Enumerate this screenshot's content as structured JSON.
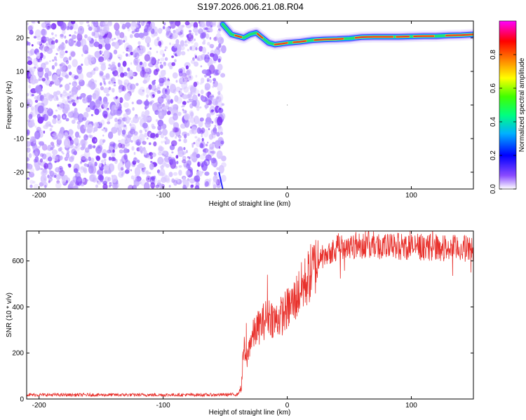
{
  "title": "S197.2026.006.21.08.R04",
  "chart_data": [
    {
      "type": "heatmap",
      "name": "spectrogram",
      "xlabel": "Height of straight line (km)",
      "ylabel": "Frequency (Hz)",
      "xlim": [
        -210,
        150
      ],
      "ylim": [
        -25,
        25
      ],
      "xticks": [
        -200,
        -100,
        0,
        100
      ],
      "xtick_labels": [
        "-200",
        "-100",
        "0",
        "100"
      ],
      "yticks": [
        20,
        10,
        0,
        -10,
        -20
      ],
      "ytick_labels": [
        "20",
        "10",
        "0",
        "-10",
        "-20"
      ],
      "noise_region": {
        "x_from": -210,
        "x_to": -50,
        "description_amplitude": 0.15
      },
      "ridge": {
        "x": [
          -52,
          -45,
          -40,
          -35,
          -30,
          -25,
          -20,
          -15,
          -10,
          -5,
          0,
          10,
          20,
          30,
          40,
          50,
          60,
          70,
          80,
          90,
          100,
          110,
          120,
          130,
          140,
          150
        ],
        "freq": [
          24,
          21,
          20.5,
          20,
          21,
          21.5,
          20,
          18.5,
          18,
          18.2,
          18.5,
          18.8,
          19.3,
          19.5,
          19.6,
          19.8,
          20.2,
          20.3,
          20.3,
          20.3,
          20.4,
          20.5,
          20.5,
          20.7,
          20.8,
          21
        ]
      },
      "colorbar": {
        "label": "Normalized spectral amplitude",
        "ticks": [
          0.0,
          0.2,
          0.4,
          0.6,
          0.8
        ],
        "tick_labels": [
          "0.0",
          "0.2",
          "0.4",
          "0.6",
          "0.8"
        ],
        "range": [
          0,
          1
        ],
        "colormap": [
          "#ffffff",
          "#6a00ff",
          "#0000ff",
          "#00ffff",
          "#00ff00",
          "#ffff00",
          "#ff8000",
          "#ff0000",
          "#ff00ff"
        ]
      }
    },
    {
      "type": "line",
      "name": "snr",
      "xlabel": "Height of straight line (km)",
      "ylabel": "SNR (10 * v/v)",
      "xlim": [
        -210,
        150
      ],
      "ylim": [
        0,
        730
      ],
      "xticks": [
        -200,
        -100,
        0,
        100
      ],
      "xtick_labels": [
        "-200",
        "-100",
        "0",
        "100"
      ],
      "yticks": [
        0,
        200,
        400,
        600
      ],
      "ytick_labels": [
        "0",
        "200",
        "400",
        "600"
      ],
      "color": "#e8312c",
      "series": [
        {
          "name": "SNR",
          "x": [
            -210,
            -180,
            -150,
            -120,
            -90,
            -60,
            -40,
            -37,
            -35,
            -33,
            -30,
            -25,
            -20,
            -15,
            -10,
            -5,
            0,
            5,
            10,
            15,
            20,
            25,
            30,
            40,
            50,
            60,
            70,
            80,
            90,
            100,
            110,
            120,
            130,
            140,
            150
          ],
          "values": [
            18,
            18,
            18,
            18,
            18,
            18,
            20,
            50,
            230,
            150,
            250,
            300,
            330,
            370,
            340,
            360,
            390,
            420,
            470,
            510,
            560,
            600,
            630,
            660,
            670,
            670,
            670,
            660,
            665,
            660,
            660,
            660,
            655,
            655,
            650
          ]
        }
      ],
      "spikes": [
        {
          "x": -33,
          "y": 330
        },
        {
          "x": -16,
          "y": 540
        },
        {
          "x": 63,
          "y": 730
        },
        {
          "x": 99,
          "y": 730
        },
        {
          "x": 148,
          "y": 550
        }
      ]
    }
  ]
}
